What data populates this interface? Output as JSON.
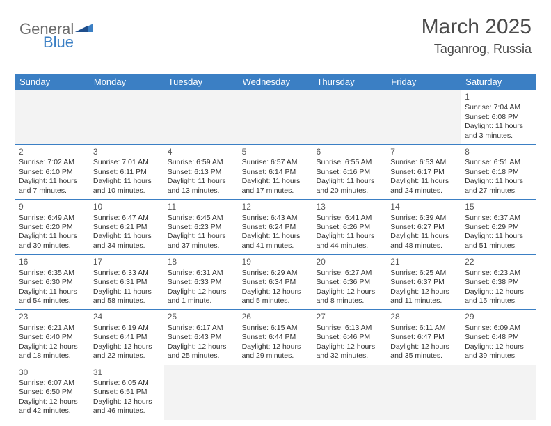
{
  "logo": {
    "text_general": "General",
    "text_blue": "Blue"
  },
  "header": {
    "month_title": "March 2025",
    "location": "Taganrog, Russia"
  },
  "colors": {
    "header_bg": "#3b7fc4",
    "header_text": "#ffffff",
    "border": "#3b7fc4",
    "blank_bg": "#f3f3f3",
    "text": "#333333",
    "logo_gray": "#6b6b6b",
    "logo_blue": "#3b7fc4"
  },
  "day_names": [
    "Sunday",
    "Monday",
    "Tuesday",
    "Wednesday",
    "Thursday",
    "Friday",
    "Saturday"
  ],
  "weeks": [
    [
      {
        "blank": true
      },
      {
        "blank": true
      },
      {
        "blank": true
      },
      {
        "blank": true
      },
      {
        "blank": true
      },
      {
        "blank": true
      },
      {
        "day": "1",
        "sunrise": "Sunrise: 7:04 AM",
        "sunset": "Sunset: 6:08 PM",
        "daylight": "Daylight: 11 hours and 3 minutes."
      }
    ],
    [
      {
        "day": "2",
        "sunrise": "Sunrise: 7:02 AM",
        "sunset": "Sunset: 6:10 PM",
        "daylight": "Daylight: 11 hours and 7 minutes."
      },
      {
        "day": "3",
        "sunrise": "Sunrise: 7:01 AM",
        "sunset": "Sunset: 6:11 PM",
        "daylight": "Daylight: 11 hours and 10 minutes."
      },
      {
        "day": "4",
        "sunrise": "Sunrise: 6:59 AM",
        "sunset": "Sunset: 6:13 PM",
        "daylight": "Daylight: 11 hours and 13 minutes."
      },
      {
        "day": "5",
        "sunrise": "Sunrise: 6:57 AM",
        "sunset": "Sunset: 6:14 PM",
        "daylight": "Daylight: 11 hours and 17 minutes."
      },
      {
        "day": "6",
        "sunrise": "Sunrise: 6:55 AM",
        "sunset": "Sunset: 6:16 PM",
        "daylight": "Daylight: 11 hours and 20 minutes."
      },
      {
        "day": "7",
        "sunrise": "Sunrise: 6:53 AM",
        "sunset": "Sunset: 6:17 PM",
        "daylight": "Daylight: 11 hours and 24 minutes."
      },
      {
        "day": "8",
        "sunrise": "Sunrise: 6:51 AM",
        "sunset": "Sunset: 6:18 PM",
        "daylight": "Daylight: 11 hours and 27 minutes."
      }
    ],
    [
      {
        "day": "9",
        "sunrise": "Sunrise: 6:49 AM",
        "sunset": "Sunset: 6:20 PM",
        "daylight": "Daylight: 11 hours and 30 minutes."
      },
      {
        "day": "10",
        "sunrise": "Sunrise: 6:47 AM",
        "sunset": "Sunset: 6:21 PM",
        "daylight": "Daylight: 11 hours and 34 minutes."
      },
      {
        "day": "11",
        "sunrise": "Sunrise: 6:45 AM",
        "sunset": "Sunset: 6:23 PM",
        "daylight": "Daylight: 11 hours and 37 minutes."
      },
      {
        "day": "12",
        "sunrise": "Sunrise: 6:43 AM",
        "sunset": "Sunset: 6:24 PM",
        "daylight": "Daylight: 11 hours and 41 minutes."
      },
      {
        "day": "13",
        "sunrise": "Sunrise: 6:41 AM",
        "sunset": "Sunset: 6:26 PM",
        "daylight": "Daylight: 11 hours and 44 minutes."
      },
      {
        "day": "14",
        "sunrise": "Sunrise: 6:39 AM",
        "sunset": "Sunset: 6:27 PM",
        "daylight": "Daylight: 11 hours and 48 minutes."
      },
      {
        "day": "15",
        "sunrise": "Sunrise: 6:37 AM",
        "sunset": "Sunset: 6:29 PM",
        "daylight": "Daylight: 11 hours and 51 minutes."
      }
    ],
    [
      {
        "day": "16",
        "sunrise": "Sunrise: 6:35 AM",
        "sunset": "Sunset: 6:30 PM",
        "daylight": "Daylight: 11 hours and 54 minutes."
      },
      {
        "day": "17",
        "sunrise": "Sunrise: 6:33 AM",
        "sunset": "Sunset: 6:31 PM",
        "daylight": "Daylight: 11 hours and 58 minutes."
      },
      {
        "day": "18",
        "sunrise": "Sunrise: 6:31 AM",
        "sunset": "Sunset: 6:33 PM",
        "daylight": "Daylight: 12 hours and 1 minute."
      },
      {
        "day": "19",
        "sunrise": "Sunrise: 6:29 AM",
        "sunset": "Sunset: 6:34 PM",
        "daylight": "Daylight: 12 hours and 5 minutes."
      },
      {
        "day": "20",
        "sunrise": "Sunrise: 6:27 AM",
        "sunset": "Sunset: 6:36 PM",
        "daylight": "Daylight: 12 hours and 8 minutes."
      },
      {
        "day": "21",
        "sunrise": "Sunrise: 6:25 AM",
        "sunset": "Sunset: 6:37 PM",
        "daylight": "Daylight: 12 hours and 11 minutes."
      },
      {
        "day": "22",
        "sunrise": "Sunrise: 6:23 AM",
        "sunset": "Sunset: 6:38 PM",
        "daylight": "Daylight: 12 hours and 15 minutes."
      }
    ],
    [
      {
        "day": "23",
        "sunrise": "Sunrise: 6:21 AM",
        "sunset": "Sunset: 6:40 PM",
        "daylight": "Daylight: 12 hours and 18 minutes."
      },
      {
        "day": "24",
        "sunrise": "Sunrise: 6:19 AM",
        "sunset": "Sunset: 6:41 PM",
        "daylight": "Daylight: 12 hours and 22 minutes."
      },
      {
        "day": "25",
        "sunrise": "Sunrise: 6:17 AM",
        "sunset": "Sunset: 6:43 PM",
        "daylight": "Daylight: 12 hours and 25 minutes."
      },
      {
        "day": "26",
        "sunrise": "Sunrise: 6:15 AM",
        "sunset": "Sunset: 6:44 PM",
        "daylight": "Daylight: 12 hours and 29 minutes."
      },
      {
        "day": "27",
        "sunrise": "Sunrise: 6:13 AM",
        "sunset": "Sunset: 6:46 PM",
        "daylight": "Daylight: 12 hours and 32 minutes."
      },
      {
        "day": "28",
        "sunrise": "Sunrise: 6:11 AM",
        "sunset": "Sunset: 6:47 PM",
        "daylight": "Daylight: 12 hours and 35 minutes."
      },
      {
        "day": "29",
        "sunrise": "Sunrise: 6:09 AM",
        "sunset": "Sunset: 6:48 PM",
        "daylight": "Daylight: 12 hours and 39 minutes."
      }
    ],
    [
      {
        "day": "30",
        "sunrise": "Sunrise: 6:07 AM",
        "sunset": "Sunset: 6:50 PM",
        "daylight": "Daylight: 12 hours and 42 minutes."
      },
      {
        "day": "31",
        "sunrise": "Sunrise: 6:05 AM",
        "sunset": "Sunset: 6:51 PM",
        "daylight": "Daylight: 12 hours and 46 minutes."
      },
      {
        "blank": true
      },
      {
        "blank": true
      },
      {
        "blank": true
      },
      {
        "blank": true
      },
      {
        "blank": true
      }
    ]
  ]
}
